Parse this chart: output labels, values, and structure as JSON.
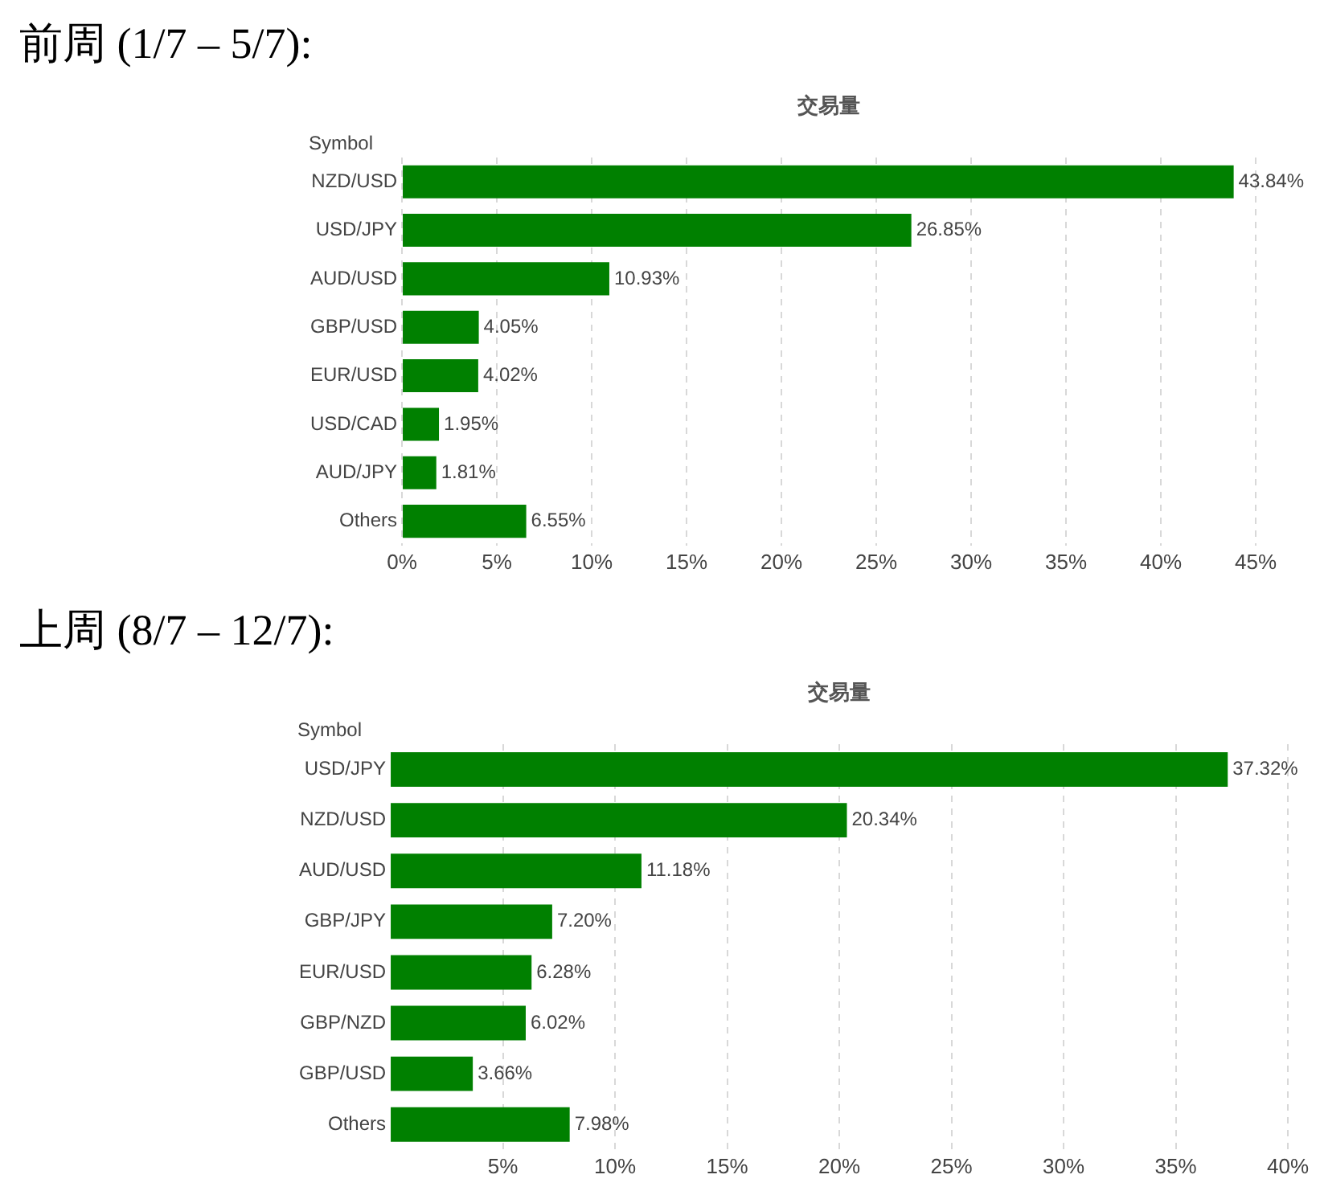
{
  "chart_data": [
    {
      "type": "bar",
      "orientation": "horizontal",
      "title": "前周 (1/7 – 5/7):",
      "subtitle": "交易量",
      "ylabel": "Symbol",
      "categories": [
        "NZD/USD",
        "USD/JPY",
        "AUD/USD",
        "GBP/USD",
        "EUR/USD",
        "USD/CAD",
        "AUD/JPY",
        "Others"
      ],
      "values": [
        43.84,
        26.85,
        10.93,
        4.05,
        4.02,
        1.95,
        1.81,
        6.55
      ],
      "value_labels": [
        "43.84%",
        "26.85%",
        "10.93%",
        "4.05%",
        "4.02%",
        "1.95%",
        "1.81%",
        "6.55%"
      ],
      "color": "#008000",
      "xlim": [
        0,
        45
      ],
      "xticks": [
        {
          "value": 0,
          "label": "0%"
        },
        {
          "value": 5,
          "label": "5%"
        },
        {
          "value": 10,
          "label": "10%"
        },
        {
          "value": 15,
          "label": "15%"
        },
        {
          "value": 20,
          "label": "20%"
        },
        {
          "value": 25,
          "label": "25%"
        },
        {
          "value": 30,
          "label": "30%"
        },
        {
          "value": 35,
          "label": "35%"
        },
        {
          "value": 40,
          "label": "40%"
        },
        {
          "value": 45,
          "label": "45%"
        }
      ],
      "grid": "x"
    },
    {
      "type": "bar",
      "orientation": "horizontal",
      "title": "上周 (8/7 – 12/7):",
      "subtitle": "交易量",
      "ylabel": "Symbol",
      "categories": [
        "USD/JPY",
        "NZD/USD",
        "AUD/USD",
        "GBP/JPY",
        "EUR/USD",
        "GBP/NZD",
        "GBP/USD",
        "Others"
      ],
      "values": [
        37.32,
        20.34,
        11.18,
        7.2,
        6.28,
        6.02,
        3.66,
        7.98
      ],
      "value_labels": [
        "37.32%",
        "20.34%",
        "11.18%",
        "7.20%",
        "6.28%",
        "6.02%",
        "3.66%",
        "7.98%"
      ],
      "color": "#008000",
      "xlim": [
        0,
        40
      ],
      "xticks": [
        {
          "value": 5,
          "label": "5%"
        },
        {
          "value": 10,
          "label": "10%"
        },
        {
          "value": 15,
          "label": "15%"
        },
        {
          "value": 20,
          "label": "20%"
        },
        {
          "value": 25,
          "label": "25%"
        },
        {
          "value": 30,
          "label": "30%"
        },
        {
          "value": 35,
          "label": "35%"
        },
        {
          "value": 40,
          "label": "40%"
        }
      ],
      "grid": "x"
    }
  ]
}
